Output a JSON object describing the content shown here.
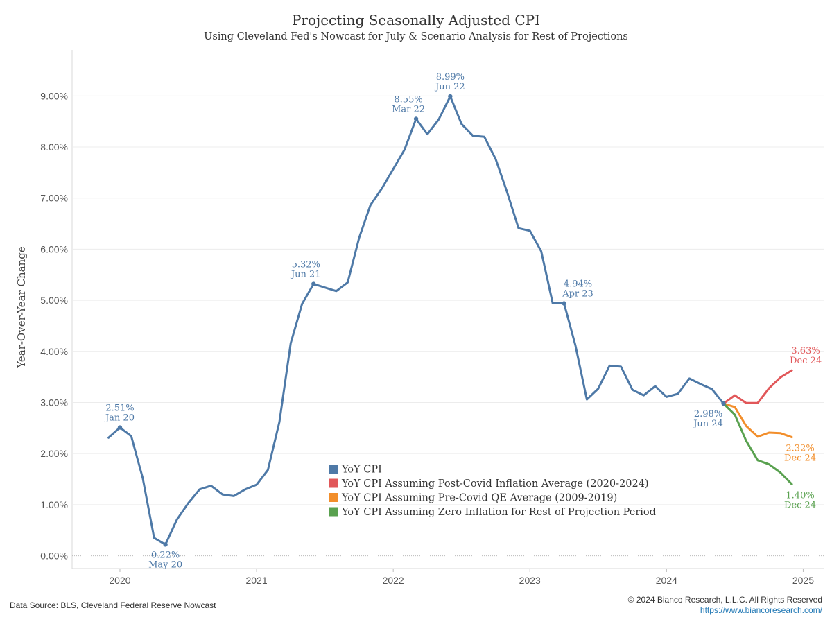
{
  "chart_data": {
    "type": "line",
    "title": "Projecting Seasonally Adjusted CPI",
    "subtitle": "Using Cleveland Fed's Nowcast for July & Scenario Analysis for Rest of Projections",
    "ylabel": "Year-Over-Year Change",
    "xlabel": "",
    "ylim": [
      -0.25,
      9.9
    ],
    "yticks": [
      0,
      1,
      2,
      3,
      4,
      5,
      6,
      7,
      8,
      9
    ],
    "ytick_labels": [
      "0.00%",
      "1.00%",
      "2.00%",
      "3.00%",
      "4.00%",
      "5.00%",
      "6.00%",
      "7.00%",
      "8.00%",
      "9.00%"
    ],
    "xlim": [
      2019.65,
      2025.15
    ],
    "xticks": [
      2020,
      2021,
      2022,
      2023,
      2024,
      2025
    ],
    "xtick_labels": [
      "2020",
      "2021",
      "2022",
      "2023",
      "2024",
      "2025"
    ],
    "grid": true,
    "legend_position": "bottom-center",
    "series": [
      {
        "name": "YoY CPI",
        "color": "#4e79a7",
        "x": [
          2019.917,
          2020.0,
          2020.083,
          2020.167,
          2020.25,
          2020.333,
          2020.417,
          2020.5,
          2020.583,
          2020.667,
          2020.75,
          2020.833,
          2020.917,
          2021.0,
          2021.083,
          2021.167,
          2021.25,
          2021.333,
          2021.417,
          2021.5,
          2021.583,
          2021.667,
          2021.75,
          2021.833,
          2021.917,
          2022.0,
          2022.083,
          2022.167,
          2022.25,
          2022.333,
          2022.417,
          2022.5,
          2022.583,
          2022.667,
          2022.75,
          2022.833,
          2022.917,
          2023.0,
          2023.083,
          2023.167,
          2023.25,
          2023.333,
          2023.417,
          2023.5,
          2023.583,
          2023.667,
          2023.75,
          2023.833,
          2023.917,
          2024.0,
          2024.083,
          2024.167,
          2024.25,
          2024.333,
          2024.417
        ],
        "values": [
          2.31,
          2.51,
          2.34,
          1.52,
          0.35,
          0.22,
          0.71,
          1.03,
          1.3,
          1.37,
          1.2,
          1.17,
          1.3,
          1.39,
          1.68,
          2.62,
          4.16,
          4.93,
          5.32,
          5.25,
          5.18,
          5.35,
          6.22,
          6.86,
          7.19,
          7.57,
          7.95,
          8.55,
          8.25,
          8.54,
          8.99,
          8.45,
          8.22,
          8.2,
          7.76,
          7.12,
          6.41,
          6.36,
          5.96,
          4.94,
          4.94,
          4.12,
          3.06,
          3.27,
          3.72,
          3.7,
          3.25,
          3.14,
          3.32,
          3.11,
          3.17,
          3.47,
          3.36,
          3.26,
          2.98
        ]
      },
      {
        "name": "YoY CPI Assuming Post-Covid Inflation Average (2020-2024)",
        "color": "#e15759",
        "x": [
          2024.417,
          2024.5,
          2024.583,
          2024.667,
          2024.75,
          2024.833,
          2024.917
        ],
        "values": [
          2.98,
          3.14,
          2.99,
          2.99,
          3.28,
          3.49,
          3.63
        ]
      },
      {
        "name": "YoY CPI Assuming Pre-Covid QE Average (2009-2019)",
        "color": "#f28e2b",
        "x": [
          2024.417,
          2024.5,
          2024.583,
          2024.667,
          2024.75,
          2024.833,
          2024.917
        ],
        "values": [
          2.98,
          2.91,
          2.54,
          2.33,
          2.41,
          2.4,
          2.32
        ]
      },
      {
        "name": "YoY CPI Assuming Zero Inflation for Rest of Projection Period",
        "color": "#59a14f",
        "x": [
          2024.417,
          2024.5,
          2024.583,
          2024.667,
          2024.75,
          2024.833,
          2024.917
        ],
        "values": [
          2.98,
          2.76,
          2.25,
          1.87,
          1.79,
          1.63,
          1.4
        ]
      }
    ],
    "annotations": [
      {
        "series": 0,
        "x": 2020.0,
        "y": 2.51,
        "value_label": "2.51%",
        "date_label": "Jan 20",
        "pos": "above"
      },
      {
        "series": 0,
        "x": 2020.333,
        "y": 0.22,
        "value_label": "0.22%",
        "date_label": "May 20",
        "pos": "below"
      },
      {
        "series": 0,
        "x": 2021.417,
        "y": 5.32,
        "value_label": "5.32%",
        "date_label": "Jun 21",
        "pos": "above-left"
      },
      {
        "series": 0,
        "x": 2022.167,
        "y": 8.55,
        "value_label": "8.55%",
        "date_label": "Mar 22",
        "pos": "above-left"
      },
      {
        "series": 0,
        "x": 2022.417,
        "y": 8.99,
        "value_label": "8.99%",
        "date_label": "Jun 22",
        "pos": "above"
      },
      {
        "series": 0,
        "x": 2023.25,
        "y": 4.94,
        "value_label": "4.94%",
        "date_label": "Apr 23",
        "pos": "above-right"
      },
      {
        "series": 0,
        "x": 2024.417,
        "y": 2.98,
        "value_label": "2.98%",
        "date_label": "Jun 24",
        "pos": "below-left"
      },
      {
        "series": 1,
        "x": 2024.917,
        "y": 3.63,
        "value_label": "3.63%",
        "date_label": "Dec 24",
        "pos": "above-right"
      },
      {
        "series": 2,
        "x": 2024.917,
        "y": 2.32,
        "value_label": "2.32%",
        "date_label": "Dec 24",
        "pos": "below-right"
      },
      {
        "series": 3,
        "x": 2024.917,
        "y": 1.4,
        "value_label": "1.40%",
        "date_label": "Dec 24",
        "pos": "below-right"
      }
    ]
  },
  "footer": {
    "source": "Data Source: BLS, Cleveland Federal Reserve Nowcast",
    "copyright": "© 2024 Bianco Research, L.L.C. All Rights Reserved",
    "link": "https://www.biancoresearch.com/"
  }
}
